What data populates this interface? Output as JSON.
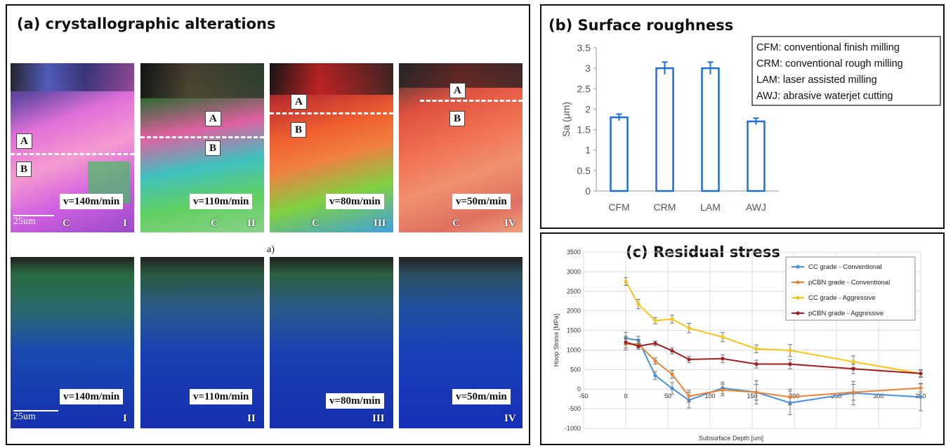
{
  "panel_a": {
    "title": "(a) crystallographic alterations",
    "sub_label": "a)",
    "scale_bar": "25um",
    "ebsd_tiles": [
      {
        "speed": "v=140m/min",
        "roman": "I",
        "A": "A",
        "B": "B",
        "C": "C"
      },
      {
        "speed": "v=110m/min",
        "roman": "II",
        "A": "A",
        "B": "B",
        "C": "C"
      },
      {
        "speed": "v=80m/min",
        "roman": "III",
        "A": "A",
        "B": "B",
        "C": "C"
      },
      {
        "speed": "v=50m/min",
        "roman": "IV",
        "A": "A",
        "B": "B",
        "C": "C"
      }
    ],
    "kam_tiles": [
      {
        "speed": "v=140m/min",
        "roman": "I"
      },
      {
        "speed": "v=110m/min",
        "roman": "II"
      },
      {
        "speed": "v=80m/min",
        "roman": "III"
      },
      {
        "speed": "v=50m/min",
        "roman": "IV"
      }
    ]
  },
  "chart_data": [
    {
      "type": "bar",
      "title": "(b) Surface roughness",
      "categories": [
        "CFM",
        "CRM",
        "LAM",
        "AWJ"
      ],
      "values": [
        1.8,
        3.0,
        3.0,
        1.7
      ],
      "errors": [
        0.08,
        0.15,
        0.15,
        0.08
      ],
      "ylabel": "Sa (μm)",
      "ylim": [
        0,
        3.5
      ],
      "yticks": [
        "0",
        "0.5",
        "1",
        "1.5",
        "2",
        "2.5",
        "3",
        "3.5"
      ],
      "ytick_values": [
        0,
        0.5,
        1,
        1.5,
        2,
        2.5,
        3,
        3.5
      ],
      "bar_color": "#1f6fd0",
      "grid": false,
      "legend": [
        "CFM: conventional finish milling",
        "CRM: conventional rough milling",
        "LAM: laser assisted milling",
        "AWJ: abrasive waterjet cutting"
      ],
      "legend_position": "top-right"
    },
    {
      "type": "line",
      "title": "(c) Residual stress",
      "xlabel": "Subsurface Depth [um]",
      "ylabel": "Hoop Stress [MPa]",
      "xlim": [
        -50,
        350
      ],
      "ylim": [
        -1000,
        3500
      ],
      "xticks": [
        "-50",
        "0",
        "50",
        "100",
        "150",
        "200",
        "250",
        "300",
        "350"
      ],
      "xtick_values": [
        -50,
        0,
        50,
        100,
        150,
        200,
        250,
        300,
        350
      ],
      "yticks": [
        "-1000",
        "-500",
        "0",
        "500",
        "1000",
        "1500",
        "2000",
        "2500",
        "3000",
        "3500"
      ],
      "ytick_values": [
        -1000,
        -500,
        0,
        500,
        1000,
        1500,
        2000,
        2500,
        3000,
        3500
      ],
      "grid": true,
      "legend_position": "top-right",
      "series": [
        {
          "name": "CC grade - Conventional",
          "color": "#4a90d9",
          "x": [
            0,
            15,
            35,
            55,
            75,
            115,
            155,
            195,
            270,
            350
          ],
          "y": [
            1300,
            1250,
            350,
            20,
            -280,
            30,
            -80,
            -350,
            -100,
            -200
          ],
          "err": [
            150,
            100,
            100,
            150,
            200,
            150,
            300,
            300,
            300,
            350
          ]
        },
        {
          "name": "pCBN grade - Conventional",
          "color": "#e8843a",
          "x": [
            0,
            15,
            35,
            55,
            75,
            115,
            155,
            195,
            270,
            350
          ],
          "y": [
            1150,
            1150,
            720,
            380,
            -180,
            -20,
            -80,
            -200,
            -80,
            30
          ],
          "err": [
            150,
            100,
            80,
            100,
            150,
            150,
            200,
            200,
            200,
            100
          ]
        },
        {
          "name": "CC grade - Aggressive",
          "color": "#f5c518",
          "x": [
            0,
            15,
            35,
            55,
            75,
            115,
            155,
            195,
            270,
            350
          ],
          "y": [
            2750,
            2170,
            1750,
            1790,
            1560,
            1330,
            1030,
            990,
            700,
            400
          ],
          "err": [
            100,
            120,
            80,
            100,
            120,
            120,
            100,
            150,
            150,
            80
          ]
        },
        {
          "name": "pCBN grade - Aggressive",
          "color": "#a01e1e",
          "x": [
            0,
            15,
            35,
            55,
            75,
            115,
            155,
            195,
            270,
            350
          ],
          "y": [
            1200,
            1100,
            1170,
            980,
            760,
            780,
            640,
            640,
            520,
            400
          ],
          "err": [
            150,
            80,
            60,
            80,
            80,
            100,
            100,
            120,
            120,
            100
          ]
        }
      ]
    }
  ]
}
